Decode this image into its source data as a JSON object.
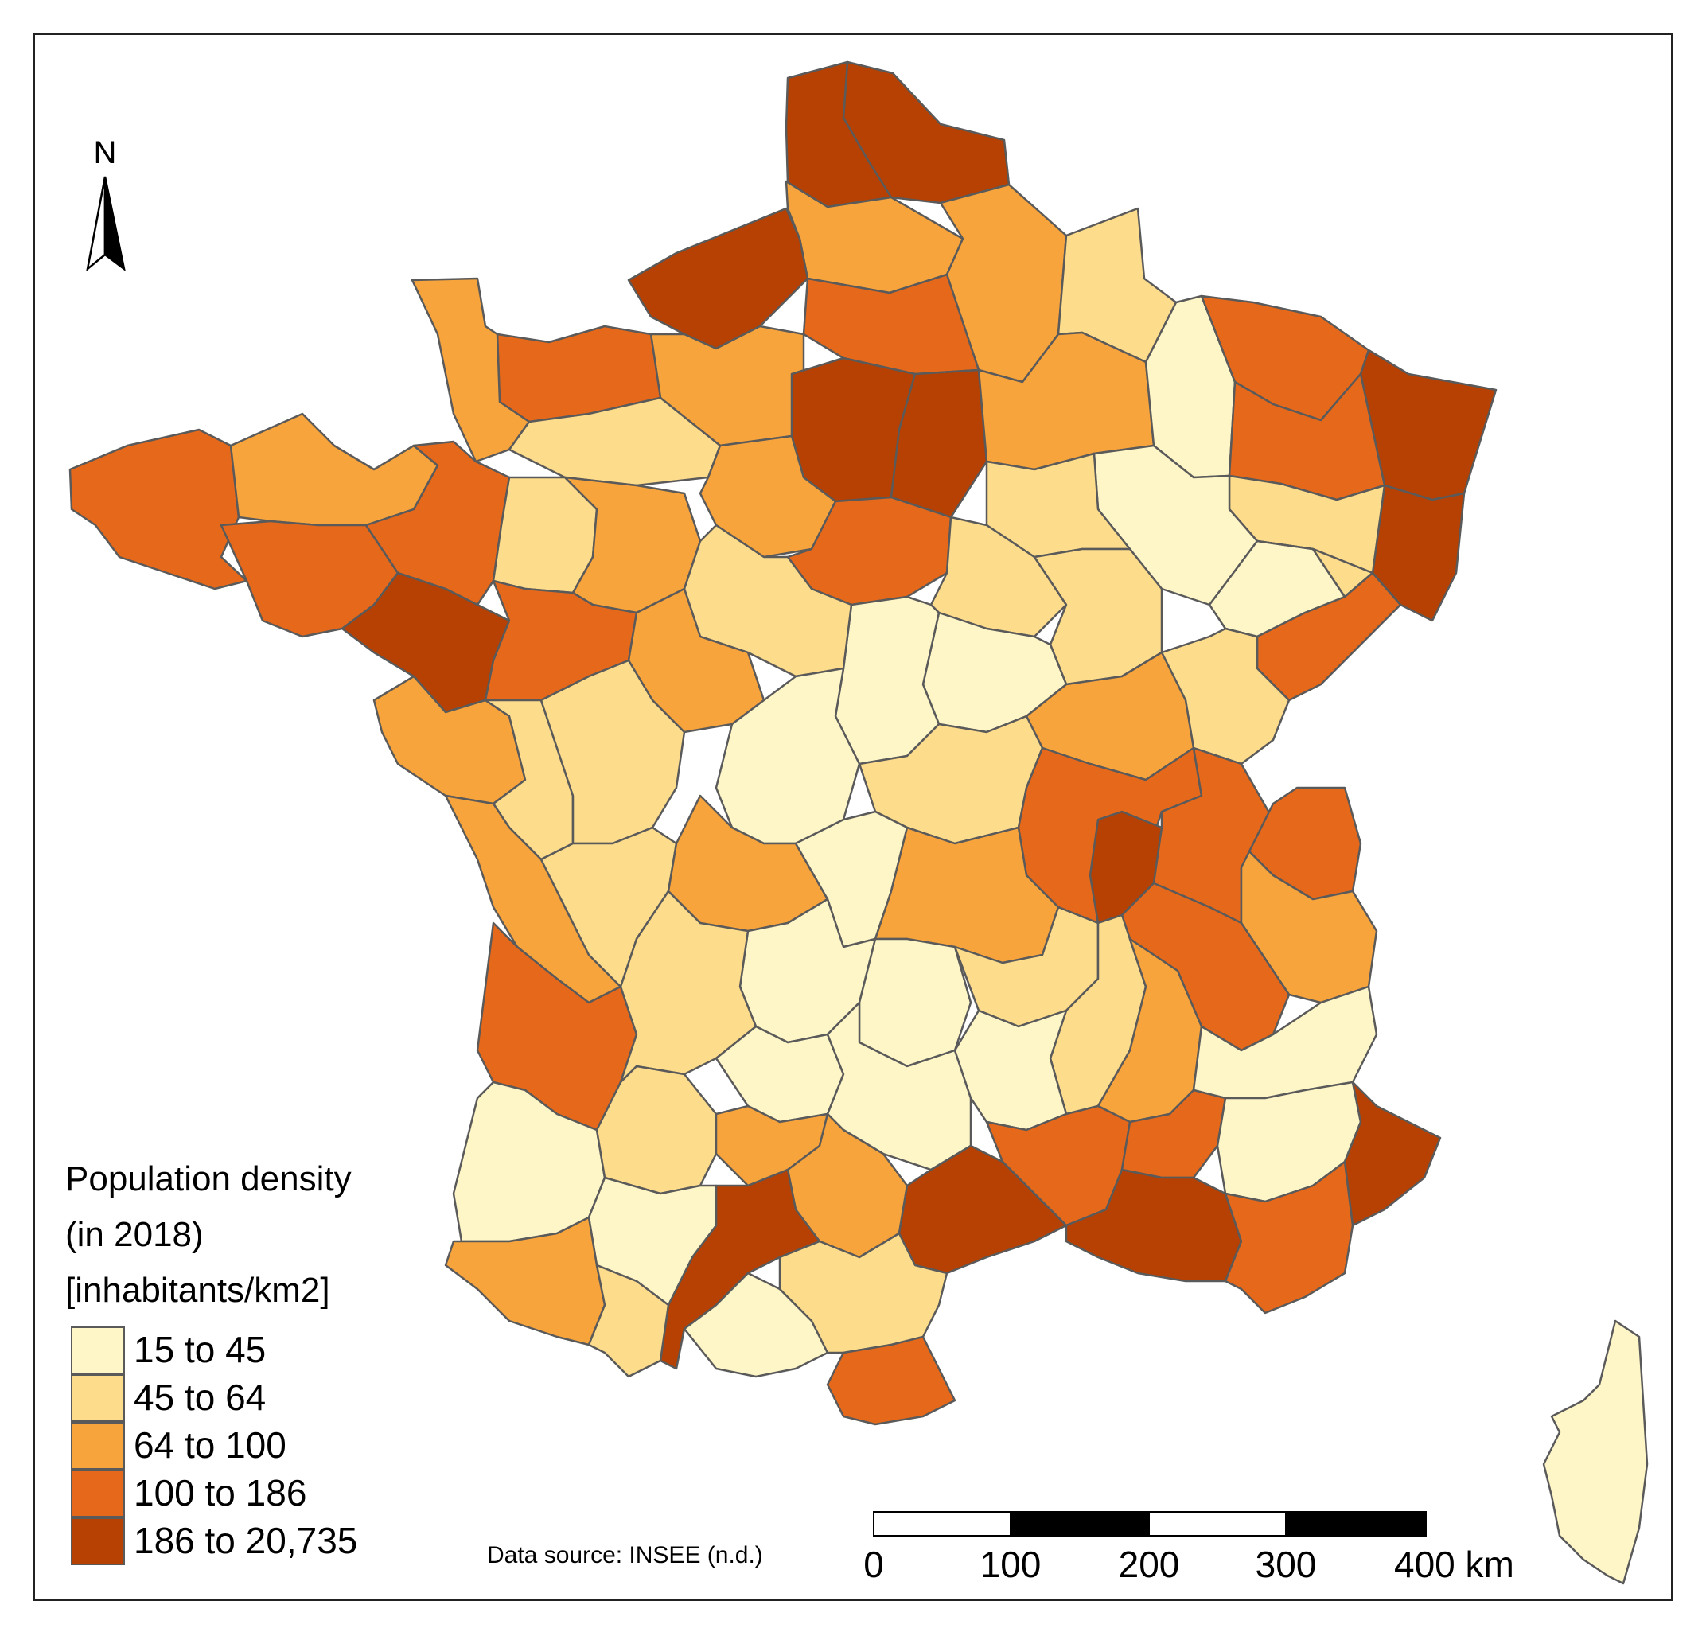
{
  "map": {
    "north_label": "N",
    "legend": {
      "title_lines": [
        "Population density",
        "(in 2018)",
        "[inhabitants/km2]"
      ],
      "classes": [
        {
          "label": "15 to 45",
          "color": "#fff6c8"
        },
        {
          "label": "45 to 64",
          "color": "#fddc8c"
        },
        {
          "label": "64 to 100",
          "color": "#f8a43c"
        },
        {
          "label": "100 to 186",
          "color": "#e6691b"
        },
        {
          "label": "186 to 20,735",
          "color": "#b64102"
        }
      ]
    },
    "scale_bar": {
      "ticks": [
        "0",
        "100",
        "200",
        "300",
        "400 km"
      ]
    },
    "source": "Data source: INSEE (n.d.)",
    "regions": [
      {
        "id": "nord",
        "class": 4
      },
      {
        "id": "pas-de-calais",
        "class": 4
      },
      {
        "id": "somme",
        "class": 2
      },
      {
        "id": "aisne",
        "class": 2
      },
      {
        "id": "ardennes",
        "class": 1
      },
      {
        "id": "seine-maritime",
        "class": 4
      },
      {
        "id": "oise",
        "class": 3
      },
      {
        "id": "eure",
        "class": 2
      },
      {
        "id": "calvados",
        "class": 3
      },
      {
        "id": "manche",
        "class": 2
      },
      {
        "id": "orne",
        "class": 1
      },
      {
        "id": "paris-region",
        "class": 4
      },
      {
        "id": "seine-et-marne",
        "class": 4
      },
      {
        "id": "marne",
        "class": 2
      },
      {
        "id": "meuse",
        "class": 0
      },
      {
        "id": "moselle",
        "class": 3
      },
      {
        "id": "bas-rhin",
        "class": 4
      },
      {
        "id": "haut-rhin",
        "class": 4
      },
      {
        "id": "meurthe-et-moselle",
        "class": 3
      },
      {
        "id": "vosges",
        "class": 1
      },
      {
        "id": "haute-marne",
        "class": 0
      },
      {
        "id": "aube",
        "class": 1
      },
      {
        "id": "finistere",
        "class": 3
      },
      {
        "id": "cotes-d-armor",
        "class": 2
      },
      {
        "id": "morbihan",
        "class": 3
      },
      {
        "id": "ille-et-vilaine",
        "class": 3
      },
      {
        "id": "loire-atlantique",
        "class": 4
      },
      {
        "id": "mayenne",
        "class": 1
      },
      {
        "id": "sarthe",
        "class": 2
      },
      {
        "id": "maine-et-loire",
        "class": 3
      },
      {
        "id": "eure-et-loir",
        "class": 2
      },
      {
        "id": "loiret",
        "class": 3
      },
      {
        "id": "yonne",
        "class": 1
      },
      {
        "id": "cote-d-or",
        "class": 1
      },
      {
        "id": "haute-saone",
        "class": 0
      },
      {
        "id": "territoire-de-belfort",
        "class": 1
      },
      {
        "id": "doubs",
        "class": 3
      },
      {
        "id": "jura",
        "class": 1
      },
      {
        "id": "saone-et-loire",
        "class": 2
      },
      {
        "id": "nievre",
        "class": 0
      },
      {
        "id": "cher",
        "class": 0
      },
      {
        "id": "loir-et-cher",
        "class": 1
      },
      {
        "id": "indre-et-loire",
        "class": 2
      },
      {
        "id": "vendee",
        "class": 2
      },
      {
        "id": "deux-sevres",
        "class": 1
      },
      {
        "id": "vienne",
        "class": 1
      },
      {
        "id": "indre",
        "class": 0
      },
      {
        "id": "allier",
        "class": 1
      },
      {
        "id": "loire",
        "class": 3
      },
      {
        "id": "rhone",
        "class": 4
      },
      {
        "id": "ain",
        "class": 3
      },
      {
        "id": "haute-savoie",
        "class": 3
      },
      {
        "id": "savoie",
        "class": 2
      },
      {
        "id": "isere",
        "class": 3
      },
      {
        "id": "charente-maritime",
        "class": 2
      },
      {
        "id": "charente",
        "class": 1
      },
      {
        "id": "haute-vienne",
        "class": 2
      },
      {
        "id": "creuse",
        "class": 0
      },
      {
        "id": "puy-de-dome",
        "class": 2
      },
      {
        "id": "correze",
        "class": 0
      },
      {
        "id": "cantal",
        "class": 0
      },
      {
        "id": "haute-loire",
        "class": 1
      },
      {
        "id": "ardeche",
        "class": 1
      },
      {
        "id": "drome",
        "class": 2
      },
      {
        "id": "hautes-alpes",
        "class": 0
      },
      {
        "id": "gironde",
        "class": 3
      },
      {
        "id": "dordogne",
        "class": 1
      },
      {
        "id": "lot",
        "class": 0
      },
      {
        "id": "aveyron",
        "class": 0
      },
      {
        "id": "lozere",
        "class": 0
      },
      {
        "id": "gard",
        "class": 3
      },
      {
        "id": "vaucluse",
        "class": 3
      },
      {
        "id": "alpes-de-haute-provence",
        "class": 0
      },
      {
        "id": "alpes-maritimes",
        "class": 4
      },
      {
        "id": "landes",
        "class": 0
      },
      {
        "id": "lot-et-garonne",
        "class": 1
      },
      {
        "id": "tarn-et-garonne",
        "class": 2
      },
      {
        "id": "tarn",
        "class": 2
      },
      {
        "id": "haute-garonne",
        "class": 4
      },
      {
        "id": "herault",
        "class": 4
      },
      {
        "id": "bouches-du-rhone",
        "class": 4
      },
      {
        "id": "var",
        "class": 3
      },
      {
        "id": "gers",
        "class": 0
      },
      {
        "id": "pyrenees-atlantiques",
        "class": 2
      },
      {
        "id": "hautes-pyrenees",
        "class": 1
      },
      {
        "id": "ariege",
        "class": 0
      },
      {
        "id": "aude",
        "class": 1
      },
      {
        "id": "pyrenees-orientales",
        "class": 3
      },
      {
        "id": "corse",
        "class": 0
      }
    ]
  }
}
